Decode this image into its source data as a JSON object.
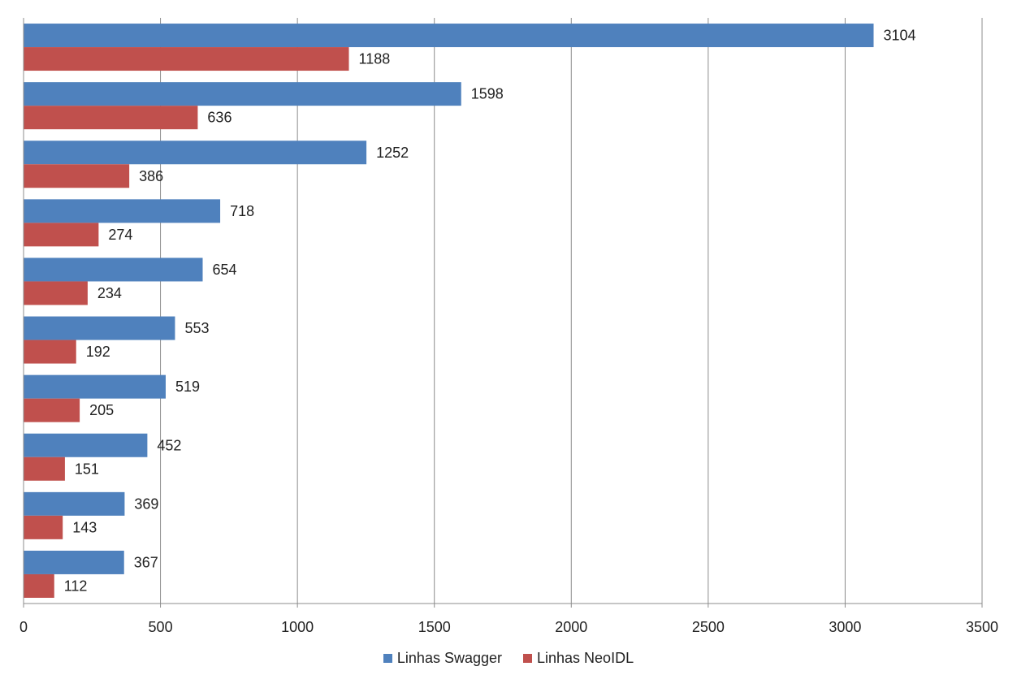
{
  "chart_data": {
    "type": "bar",
    "orientation": "horizontal",
    "title": "",
    "xlabel": "",
    "ylabel": "",
    "xlim": [
      0,
      3500
    ],
    "x_ticks": [
      "0",
      "500",
      "1000",
      "1500",
      "2000",
      "2500",
      "3000",
      "3500"
    ],
    "grid": "vertical",
    "legend_position": "bottom",
    "series": [
      {
        "name": "Linhas Swagger",
        "color": "#4F81BD",
        "values": [
          3104,
          1598,
          1252,
          718,
          654,
          553,
          519,
          452,
          369,
          367
        ]
      },
      {
        "name": "Linhas NeoIDL",
        "color": "#C0504D",
        "values": [
          1188,
          636,
          386,
          274,
          234,
          192,
          205,
          151,
          143,
          112
        ]
      }
    ]
  }
}
